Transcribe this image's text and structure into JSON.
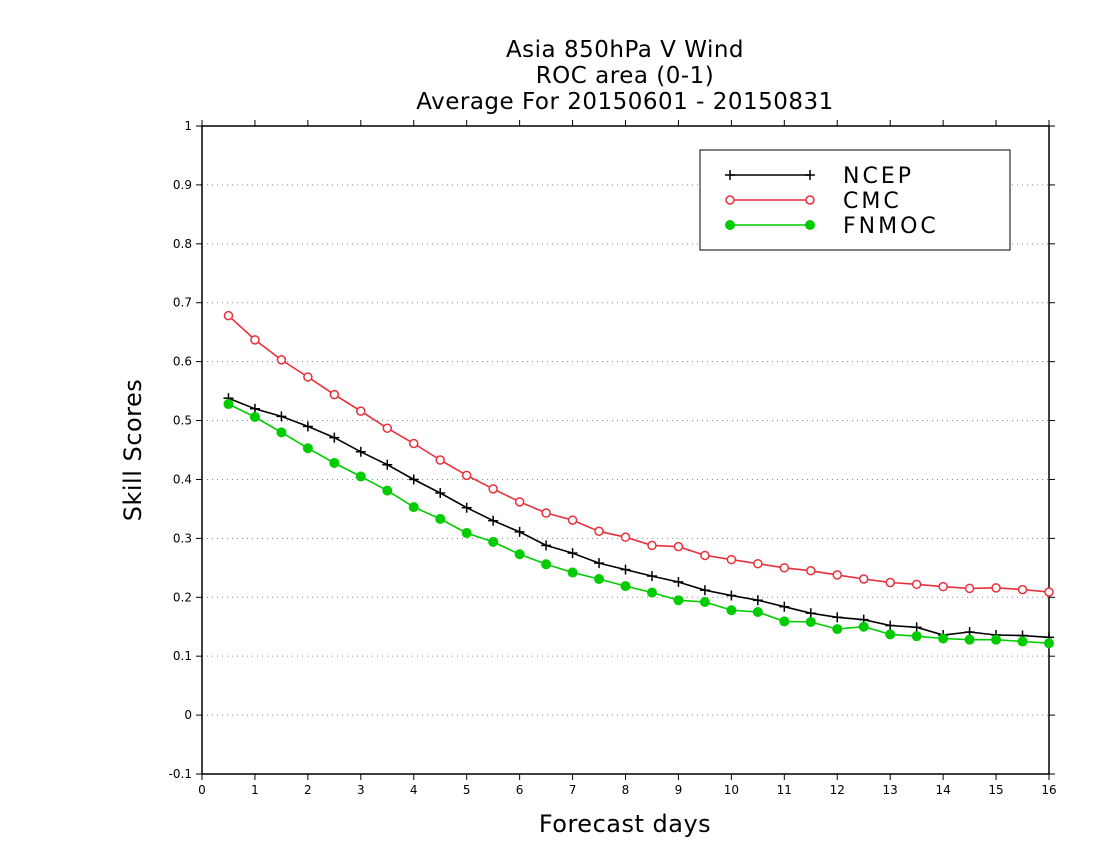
{
  "chart_data": {
    "type": "line",
    "title": [
      "Asia 850hPa V Wind",
      "ROC area (0-1)",
      "Average For 20150601 - 20150831"
    ],
    "xlabel": "Forecast days",
    "ylabel": "Skill Scores",
    "xlim": [
      0,
      16
    ],
    "ylim": [
      -0.1,
      1
    ],
    "xticks": [
      "0",
      "1",
      "2",
      "3",
      "4",
      "5",
      "6",
      "7",
      "8",
      "9",
      "10",
      "11",
      "12",
      "13",
      "14",
      "15",
      "16"
    ],
    "yticks": [
      "-0.1",
      "0",
      "0.1",
      "0.2",
      "0.3",
      "0.4",
      "0.5",
      "0.6",
      "0.7",
      "0.8",
      "0.9",
      "1"
    ],
    "grid": "horizontal-dotted",
    "legend_position": "top-right",
    "x": [
      0.5,
      1,
      1.5,
      2,
      2.5,
      3,
      3.5,
      4,
      4.5,
      5,
      5.5,
      6,
      6.5,
      7,
      7.5,
      8,
      8.5,
      9,
      9.5,
      10,
      10.5,
      11,
      11.5,
      12,
      12.5,
      13,
      13.5,
      14,
      14.5,
      15,
      15.5,
      16
    ],
    "series": [
      {
        "name": "NCEP",
        "color": "#000000",
        "marker": "plus",
        "values": [
          0.538,
          0.52,
          0.507,
          0.49,
          0.471,
          0.447,
          0.425,
          0.4,
          0.377,
          0.352,
          0.33,
          0.311,
          0.288,
          0.275,
          0.258,
          0.247,
          0.236,
          0.226,
          0.212,
          0.203,
          0.195,
          0.184,
          0.173,
          0.166,
          0.162,
          0.152,
          0.149,
          0.136,
          0.141,
          0.136,
          0.135,
          0.132
        ]
      },
      {
        "name": "CMC",
        "color": "#e8303a",
        "marker": "open-circle",
        "values": [
          0.678,
          0.637,
          0.603,
          0.574,
          0.544,
          0.516,
          0.487,
          0.461,
          0.433,
          0.407,
          0.384,
          0.362,
          0.343,
          0.331,
          0.312,
          0.302,
          0.288,
          0.286,
          0.271,
          0.264,
          0.257,
          0.25,
          0.245,
          0.238,
          0.231,
          0.225,
          0.222,
          0.218,
          0.215,
          0.216,
          0.213,
          0.209
        ]
      },
      {
        "name": "FNMOC",
        "color": "#00cc00",
        "marker": "filled-circle",
        "values": [
          0.528,
          0.506,
          0.48,
          0.453,
          0.428,
          0.405,
          0.381,
          0.353,
          0.333,
          0.309,
          0.294,
          0.273,
          0.256,
          0.242,
          0.231,
          0.219,
          0.208,
          0.195,
          0.192,
          0.178,
          0.175,
          0.159,
          0.158,
          0.146,
          0.15,
          0.137,
          0.134,
          0.13,
          0.128,
          0.128,
          0.125,
          0.122
        ]
      }
    ]
  }
}
